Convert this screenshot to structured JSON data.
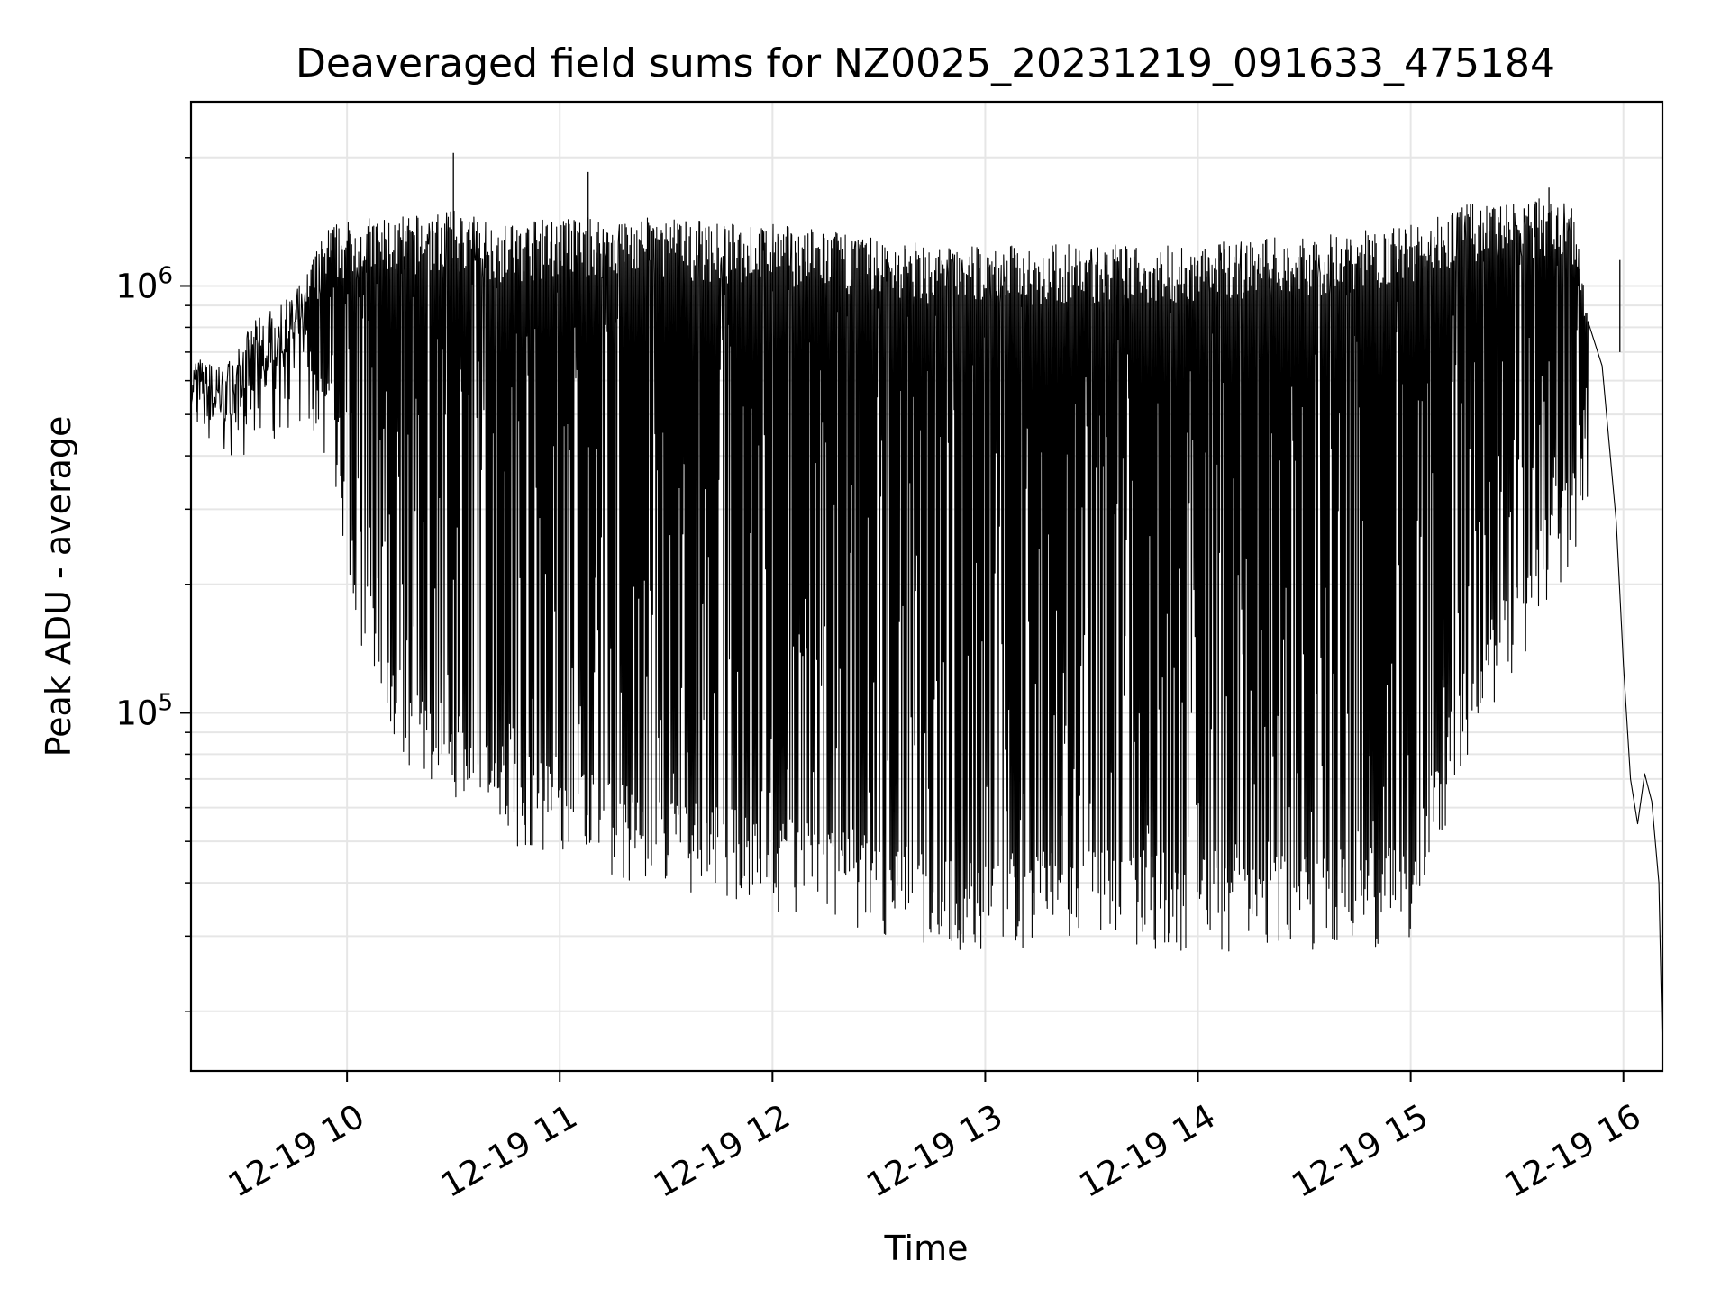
{
  "chart_data": {
    "type": "line",
    "title": "Deaveraged field sums for NZ0025_20231219_091633_475184",
    "xlabel": "Time",
    "ylabel": "Peak ADU - average",
    "x_unit": "time (2023-12-19, hh:mm)",
    "xlim": [
      "09:16",
      "16:11"
    ],
    "ylim": [
      14500,
      2700000
    ],
    "yscale": "log",
    "x_ticks": [
      "12-19 10",
      "12-19 11",
      "12-19 12",
      "12-19 13",
      "12-19 14",
      "12-19 15",
      "12-19 16"
    ],
    "y_ticks": [
      {
        "base": "10",
        "exp": "5",
        "value": 100000
      },
      {
        "base": "10",
        "exp": "6",
        "value": 1000000
      }
    ],
    "grid": true,
    "line_color": "#000000",
    "grid_color": "#e6e6e6",
    "series": [
      {
        "description": "dense oscillating field-sum signal; envelope approximated",
        "envelope": {
          "x": [
            "09:16",
            "09:25",
            "09:35",
            "09:45",
            "09:55",
            "10:05",
            "10:15",
            "10:30",
            "10:45",
            "11:00",
            "11:15",
            "11:30",
            "11:45",
            "12:00",
            "12:15",
            "12:30",
            "12:45",
            "13:00",
            "13:15",
            "13:30",
            "13:45",
            "14:00",
            "14:15",
            "14:30",
            "14:45",
            "15:00",
            "15:15",
            "15:30",
            "15:45",
            "15:50"
          ],
          "upper": [
            700000,
            650000,
            850000,
            950000,
            1400000,
            1450000,
            1450000,
            1500000,
            1400000,
            1450000,
            1450000,
            1450000,
            1400000,
            1400000,
            1350000,
            1300000,
            1250000,
            1250000,
            1250000,
            1250000,
            1250000,
            1250000,
            1300000,
            1300000,
            1350000,
            1400000,
            1550000,
            1600000,
            1600000,
            1000000
          ],
          "lower": [
            480000,
            440000,
            480000,
            560000,
            450000,
            150000,
            90000,
            75000,
            58000,
            55000,
            48000,
            44000,
            42000,
            40000,
            38000,
            36000,
            33000,
            32000,
            33000,
            33000,
            33000,
            32000,
            32000,
            32000,
            32000,
            34000,
            90000,
            150000,
            250000,
            350000
          ]
        },
        "spikes": [
          {
            "x": "10:30",
            "value": 2050000
          },
          {
            "x": "11:08",
            "value": 1850000
          },
          {
            "x": "15:39",
            "value": 1700000
          },
          {
            "x": "15:59",
            "value": 1150000
          }
        ],
        "tail": {
          "x": [
            "15:54",
            "15:58",
            "16:00",
            "16:02",
            "16:04",
            "16:06",
            "16:08",
            "16:10",
            "16:11"
          ],
          "value": [
            650000,
            280000,
            130000,
            70000,
            55000,
            72000,
            62000,
            40000,
            16000
          ]
        }
      }
    ]
  }
}
